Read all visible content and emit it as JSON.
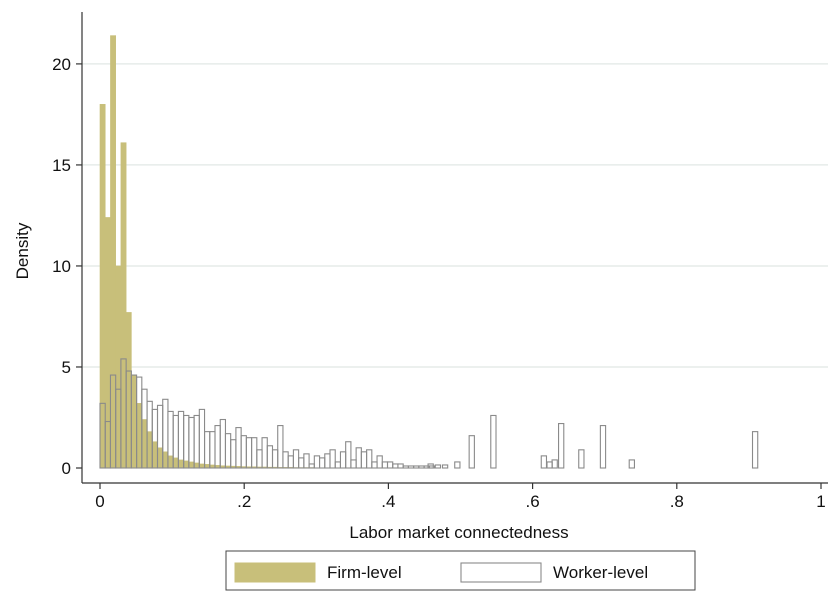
{
  "chart_data": {
    "type": "bar",
    "subtype": "overlaid-histogram",
    "title": "",
    "xlabel": "Labor market connectedness",
    "ylabel": "Density",
    "xlim": [
      0,
      1
    ],
    "ylim": [
      0,
      22
    ],
    "xticks": [
      0,
      0.2,
      0.4,
      0.6,
      0.8,
      1
    ],
    "xtick_labels": [
      "0",
      ".2",
      ".4",
      ".6",
      ".8",
      "1"
    ],
    "yticks": [
      0,
      5,
      10,
      15,
      20
    ],
    "ytick_labels": [
      "0",
      "5",
      "10",
      "15",
      "20"
    ],
    "grid": "horizontal",
    "legend_position": "bottom",
    "bin_width": 0.00725,
    "series": [
      {
        "name": "Firm-level",
        "style": "filled",
        "fill_color": "#c8bf7a",
        "edge_color": "#c8bf7a",
        "values": [
          18.0,
          12.4,
          21.4,
          10.0,
          16.1,
          7.7,
          4.6,
          3.2,
          2.4,
          1.8,
          1.3,
          1.0,
          0.8,
          0.6,
          0.5,
          0.4,
          0.35,
          0.3,
          0.25,
          0.2,
          0.18,
          0.15,
          0.13,
          0.11,
          0.1,
          0.09,
          0.08,
          0.07,
          0.06,
          0.06,
          0.05,
          0.05,
          0.04,
          0.04,
          0.03,
          0.03,
          0.03,
          0.02,
          0.02,
          0.02,
          0.02,
          0.01,
          0.01,
          0.01,
          0.01,
          0.01,
          0.01,
          0.01,
          0.01,
          0.01,
          0.01,
          0.01,
          0.01,
          0.01,
          0.01,
          0.01,
          0.01,
          0.01,
          0.01,
          0.01,
          0.01,
          0.01,
          0.01,
          0.01
        ]
      },
      {
        "name": "Worker-level",
        "style": "outline",
        "fill_color": "#ffffff",
        "edge_color": "#8a8a8a",
        "values": [
          3.2,
          2.3,
          4.6,
          3.9,
          5.4,
          4.8,
          4.6,
          4.5,
          3.9,
          3.3,
          2.9,
          3.1,
          3.4,
          2.8,
          2.6,
          2.8,
          2.6,
          2.5,
          2.6,
          2.9,
          1.8,
          1.8,
          2.1,
          2.4,
          1.7,
          1.4,
          2.0,
          1.6,
          1.5,
          1.5,
          0.9,
          1.5,
          1.1,
          0.9,
          2.1,
          0.8,
          0.6,
          0.9,
          0.5,
          0.7,
          0.2,
          0.6,
          0.5,
          0.7,
          0.9,
          0.3,
          0.8,
          1.3,
          0.4,
          1.0,
          0.8,
          0.9,
          0.3,
          0.6,
          0.3,
          0.3,
          0.2,
          0.2,
          0.1,
          0.1,
          0.1,
          0.1,
          0.1,
          0.1
        ],
        "extra_bars": [
          {
            "x": 0.455,
            "value": 0.2
          },
          {
            "x": 0.465,
            "value": 0.15
          },
          {
            "x": 0.475,
            "value": 0.15
          },
          {
            "x": 0.492,
            "value": 0.3
          },
          {
            "x": 0.512,
            "value": 1.6
          },
          {
            "x": 0.542,
            "value": 2.6
          },
          {
            "x": 0.612,
            "value": 0.6
          },
          {
            "x": 0.62,
            "value": 0.3
          },
          {
            "x": 0.627,
            "value": 0.4
          },
          {
            "x": 0.636,
            "value": 2.2
          },
          {
            "x": 0.664,
            "value": 0.9
          },
          {
            "x": 0.694,
            "value": 2.1
          },
          {
            "x": 0.734,
            "value": 0.4
          },
          {
            "x": 0.905,
            "value": 1.8
          }
        ]
      }
    ]
  }
}
